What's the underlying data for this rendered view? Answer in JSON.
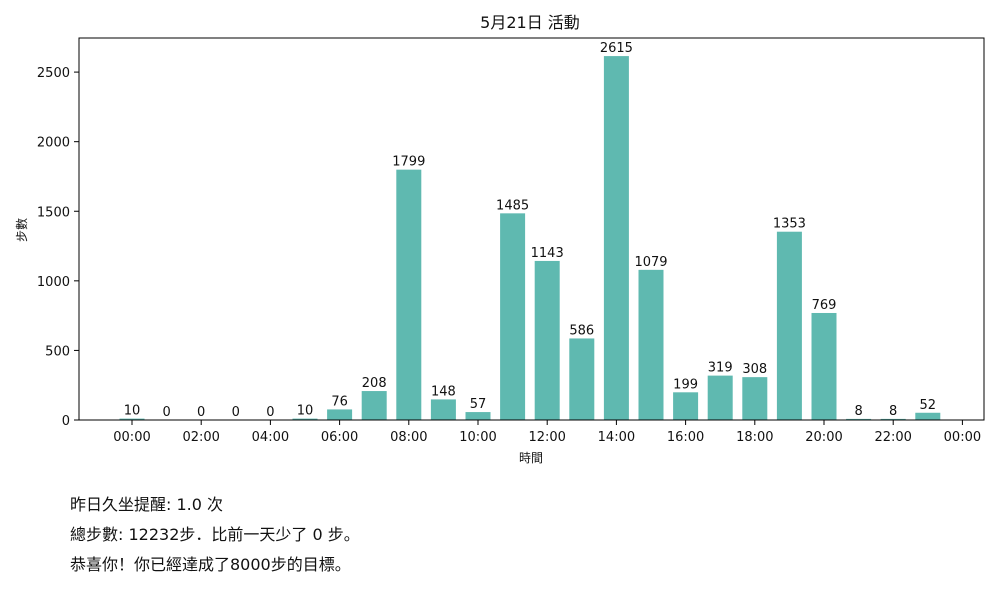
{
  "chart_data": {
    "type": "bar",
    "title": "5月21日 活動",
    "xlabel": "時間",
    "ylabel": "步數",
    "categories": [
      "00:00",
      "01:00",
      "02:00",
      "03:00",
      "04:00",
      "05:00",
      "06:00",
      "07:00",
      "08:00",
      "09:00",
      "10:00",
      "11:00",
      "12:00",
      "13:00",
      "14:00",
      "15:00",
      "16:00",
      "17:00",
      "18:00",
      "19:00",
      "20:00",
      "21:00",
      "22:00",
      "23:00"
    ],
    "values": [
      10,
      0,
      0,
      0,
      0,
      10,
      76,
      208,
      1799,
      148,
      57,
      1485,
      1143,
      586,
      2615,
      1079,
      199,
      319,
      308,
      1353,
      769,
      8,
      8,
      52
    ],
    "x_ticks": [
      "00:00",
      "02:00",
      "04:00",
      "06:00",
      "08:00",
      "10:00",
      "12:00",
      "14:00",
      "16:00",
      "18:00",
      "20:00",
      "22:00",
      "00:00"
    ],
    "y_ticks": [
      0,
      500,
      1000,
      1500,
      2000,
      2500
    ],
    "ylim": [
      0,
      2745
    ],
    "bar_color": "#5fb9b0",
    "grid": false,
    "data_labels": true
  },
  "summary": {
    "line1": "昨日久坐提醒: 1.0 次",
    "line2": "總步數: 12232步．比前一天少了 0 步。",
    "line3": "恭喜你！你已經達成了8000步的目標。"
  }
}
